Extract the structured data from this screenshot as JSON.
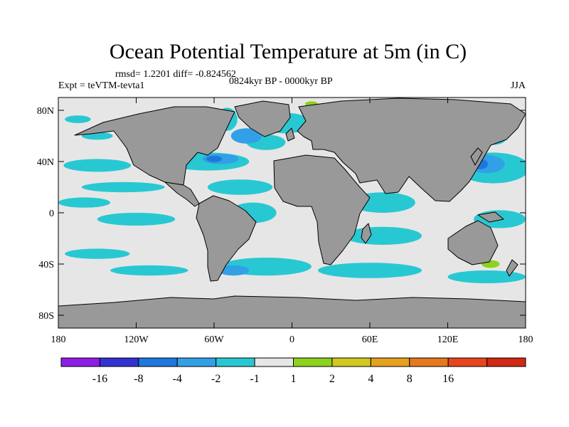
{
  "chart_data": {
    "type": "heatmap",
    "title": "Ocean Potential Temperature at 5m (in C)",
    "stats": "rmsd= 1.2201 diff= -0.824562",
    "experiment": "Expt = teVTM-tevta1",
    "period": "0824kyr BP - 0000kyr BP",
    "season": "JJA",
    "xlim": [
      -180,
      180
    ],
    "ylim": [
      -90,
      90
    ],
    "x_ticks": [
      {
        "value": -180,
        "label": "180"
      },
      {
        "value": -120,
        "label": "120W"
      },
      {
        "value": -60,
        "label": "60W"
      },
      {
        "value": 0,
        "label": "0"
      },
      {
        "value": 60,
        "label": "60E"
      },
      {
        "value": 120,
        "label": "120E"
      },
      {
        "value": 180,
        "label": "180"
      }
    ],
    "y_ticks": [
      {
        "value": 80,
        "label": "80N"
      },
      {
        "value": 40,
        "label": "40N"
      },
      {
        "value": 0,
        "label": "0"
      },
      {
        "value": -40,
        "label": "40S"
      },
      {
        "value": -80,
        "label": "80S"
      }
    ],
    "colorbar": {
      "colors": [
        "#8e1ee6",
        "#3232d2",
        "#1e78dc",
        "#32a0e6",
        "#28c8d2",
        "#e6e6e6",
        "#8cd21e",
        "#d2c81e",
        "#e6a01e",
        "#e6781e",
        "#e6461e",
        "#d22814"
      ],
      "labels": [
        "-16",
        "-8",
        "-4",
        "-2",
        "-1",
        "1",
        "2",
        "4",
        "8",
        "16"
      ]
    },
    "fields": {
      "ocean_color": "#e6e6e6",
      "land_color": "#999999",
      "regions": [
        {
          "lon": -165,
          "lat": 73,
          "rx": 10,
          "ry": 3,
          "level": -1
        },
        {
          "lon": -150,
          "lat": 60,
          "rx": 12,
          "ry": 3,
          "level": -1
        },
        {
          "lon": -50,
          "lat": 73,
          "rx": 8,
          "ry": 9,
          "level": -1
        },
        {
          "lon": -5,
          "lat": 70,
          "rx": 20,
          "ry": 8,
          "level": -1
        },
        {
          "lon": 40,
          "lat": 75,
          "rx": 18,
          "ry": 4,
          "level": -1
        },
        {
          "lon": 155,
          "lat": 58,
          "rx": 10,
          "ry": 5,
          "level": -1
        },
        {
          "lon": -20,
          "lat": 55,
          "rx": 15,
          "ry": 6,
          "level": -1
        },
        {
          "lon": -35,
          "lat": 60,
          "rx": 12,
          "ry": 6,
          "level": -2
        },
        {
          "lon": -65,
          "lat": 40,
          "rx": 32,
          "ry": 7,
          "level": -1
        },
        {
          "lon": -55,
          "lat": 42,
          "rx": 14,
          "ry": 4,
          "level": -2
        },
        {
          "lon": -60,
          "lat": 42,
          "rx": 6,
          "ry": 2.5,
          "level": -4
        },
        {
          "lon": -150,
          "lat": 37,
          "rx": 26,
          "ry": 5,
          "level": -1
        },
        {
          "lon": -130,
          "lat": 20,
          "rx": 32,
          "ry": 4,
          "level": -1
        },
        {
          "lon": 155,
          "lat": 35,
          "rx": 28,
          "ry": 12,
          "level": -1
        },
        {
          "lon": 150,
          "lat": 38,
          "rx": 14,
          "ry": 7,
          "level": -2
        },
        {
          "lon": 145,
          "lat": 38,
          "rx": 6,
          "ry": 4,
          "level": -4
        },
        {
          "lon": -40,
          "lat": 20,
          "rx": 25,
          "ry": 6,
          "level": -1
        },
        {
          "lon": -30,
          "lat": 0,
          "rx": 18,
          "ry": 8,
          "level": -1
        },
        {
          "lon": -120,
          "lat": -5,
          "rx": 30,
          "ry": 5,
          "level": -1
        },
        {
          "lon": -160,
          "lat": 8,
          "rx": 20,
          "ry": 4,
          "level": -1
        },
        {
          "lon": 70,
          "lat": 8,
          "rx": 25,
          "ry": 8,
          "level": -1
        },
        {
          "lon": 70,
          "lat": -18,
          "rx": 30,
          "ry": 7,
          "level": -1
        },
        {
          "lon": 160,
          "lat": -5,
          "rx": 20,
          "ry": 7,
          "level": -1
        },
        {
          "lon": -150,
          "lat": -32,
          "rx": 25,
          "ry": 4,
          "level": -1
        },
        {
          "lon": -110,
          "lat": -45,
          "rx": 30,
          "ry": 4,
          "level": -1
        },
        {
          "lon": -20,
          "lat": -42,
          "rx": 35,
          "ry": 7,
          "level": -1
        },
        {
          "lon": -45,
          "lat": -45,
          "rx": 12,
          "ry": 4,
          "level": -2
        },
        {
          "lon": 60,
          "lat": -45,
          "rx": 40,
          "ry": 6,
          "level": -1
        },
        {
          "lon": 150,
          "lat": -50,
          "rx": 30,
          "ry": 5,
          "level": -1
        },
        {
          "lon": 153,
          "lat": -40,
          "rx": 7,
          "ry": 3,
          "level": 2
        },
        {
          "lon": 50,
          "lat": 12,
          "rx": 3,
          "ry": 2,
          "level": 2
        },
        {
          "lon": 15,
          "lat": 85,
          "rx": 5,
          "ry": 2,
          "level": 2
        }
      ]
    }
  }
}
